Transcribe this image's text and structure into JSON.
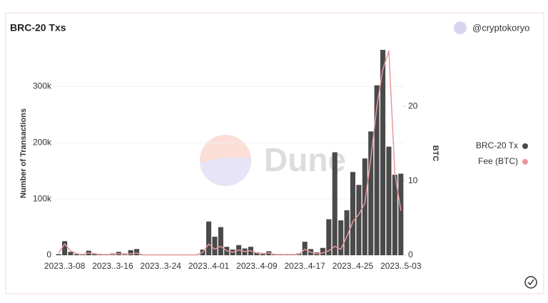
{
  "chart_data": {
    "type": "bar",
    "title": "BRC-20 Txs",
    "author": "@cryptokoryo",
    "watermark": "Dune",
    "ylabel": "Number of Transactions",
    "y2label": "BTC",
    "categories": [
      null,
      "2023..3-08",
      null,
      null,
      null,
      null,
      null,
      null,
      null,
      "2023..3-16",
      null,
      null,
      null,
      null,
      null,
      null,
      null,
      "2023..3-24",
      null,
      null,
      null,
      null,
      null,
      null,
      null,
      "2023..4-01",
      null,
      null,
      null,
      null,
      null,
      null,
      null,
      "2023..4-09",
      null,
      null,
      null,
      null,
      null,
      null,
      null,
      "2023..4-17",
      null,
      null,
      null,
      null,
      null,
      null,
      null,
      "2023..4-25",
      null,
      null,
      null,
      null,
      null,
      null,
      null,
      "2023..5-03"
    ],
    "series": [
      {
        "name": "BRC-20 Tx",
        "color": "#4a4a4a",
        "type": "bar",
        "values": [
          2000,
          25000,
          6000,
          2000,
          1000,
          8000,
          3000,
          2000,
          1000,
          3000,
          6000,
          3000,
          9000,
          11000,
          1000,
          500,
          500,
          500,
          500,
          500,
          500,
          500,
          500,
          500,
          10000,
          60000,
          33000,
          50000,
          15000,
          10000,
          18000,
          12000,
          15000,
          5000,
          4000,
          7000,
          2000,
          2000,
          2000,
          2000,
          3000,
          24000,
          11000,
          5000,
          13000,
          64000,
          183000,
          62000,
          80000,
          148000,
          125000,
          172000,
          220000,
          302000,
          365000,
          193000,
          143000,
          145000
        ]
      },
      {
        "name": "Fee (BTC)",
        "color": "#e8989c",
        "type": "line",
        "axis": "y2",
        "values": [
          0.3,
          1.5,
          0.6,
          0.2,
          0.1,
          0.3,
          0.2,
          0.1,
          0.1,
          0.1,
          0.2,
          0.1,
          0.2,
          0.3,
          0.05,
          0.05,
          0.05,
          0.05,
          0.05,
          0.05,
          0.05,
          0.05,
          0.05,
          0.05,
          0.4,
          1.5,
          0.8,
          1.2,
          0.6,
          0.4,
          0.7,
          0.5,
          0.6,
          0.3,
          0.2,
          0.3,
          0.1,
          0.1,
          0.1,
          0.1,
          0.1,
          0.8,
          0.4,
          0.2,
          0.3,
          0.6,
          1.2,
          0.8,
          2.5,
          4.5,
          5.5,
          7,
          13,
          20,
          25,
          27.5,
          11,
          6
        ]
      }
    ],
    "ylim": [
      0,
      370000
    ],
    "yticks": [
      0,
      {
        "value": 100000,
        "label": "100k"
      },
      {
        "value": 200000,
        "label": "200k"
      },
      {
        "value": 300000,
        "label": "300k"
      }
    ],
    "y2lim": [
      0,
      28
    ],
    "y2ticks": [
      0,
      10,
      20
    ],
    "grid": true
  }
}
